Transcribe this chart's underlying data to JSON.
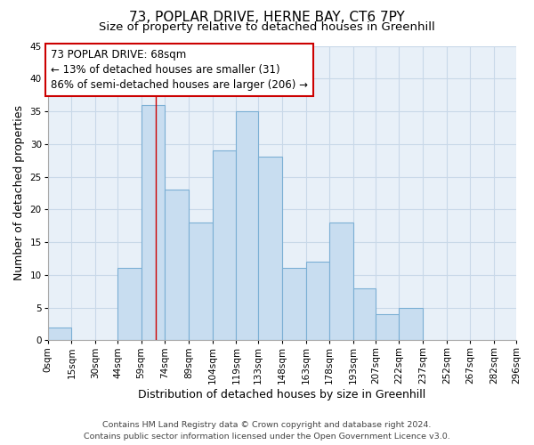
{
  "title": "73, POPLAR DRIVE, HERNE BAY, CT6 7PY",
  "subtitle": "Size of property relative to detached houses in Greenhill",
  "xlabel": "Distribution of detached houses by size in Greenhill",
  "ylabel": "Number of detached properties",
  "footer_line1": "Contains HM Land Registry data © Crown copyright and database right 2024.",
  "footer_line2": "Contains public sector information licensed under the Open Government Licence v3.0.",
  "bin_labels": [
    "0sqm",
    "15sqm",
    "30sqm",
    "44sqm",
    "59sqm",
    "74sqm",
    "89sqm",
    "104sqm",
    "119sqm",
    "133sqm",
    "148sqm",
    "163sqm",
    "178sqm",
    "193sqm",
    "207sqm",
    "222sqm",
    "237sqm",
    "252sqm",
    "267sqm",
    "282sqm",
    "296sqm"
  ],
  "bin_edges": [
    0,
    15,
    30,
    44,
    59,
    74,
    89,
    104,
    119,
    133,
    148,
    163,
    178,
    193,
    207,
    222,
    237,
    252,
    267,
    282,
    296
  ],
  "bar_heights": [
    2,
    0,
    0,
    11,
    36,
    23,
    18,
    29,
    35,
    28,
    11,
    12,
    18,
    8,
    4,
    5,
    0,
    0,
    0,
    0
  ],
  "bar_color": "#c8ddf0",
  "bar_edge_color": "#7bafd4",
  "grid_color": "#c8d8e8",
  "property_line_x": 68,
  "property_line_color": "#cc0000",
  "annotation_line1": "73 POPLAR DRIVE: 68sqm",
  "annotation_line2": "← 13% of detached houses are smaller (31)",
  "annotation_line3": "86% of semi-detached houses are larger (206) →",
  "annotation_box_color": "#ffffff",
  "annotation_box_edge_color": "#cc0000",
  "ylim": [
    0,
    45
  ],
  "yticks": [
    0,
    5,
    10,
    15,
    20,
    25,
    30,
    35,
    40,
    45
  ],
  "title_fontsize": 11,
  "subtitle_fontsize": 9.5,
  "axis_label_fontsize": 9,
  "tick_fontsize": 7.5,
  "annotation_fontsize": 8.5,
  "footer_fontsize": 6.8,
  "bg_color": "#e8f0f8"
}
